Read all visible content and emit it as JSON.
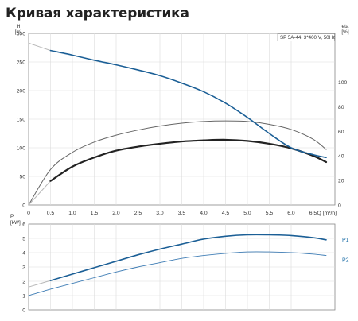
{
  "page": {
    "title": "Кривая характеристика"
  },
  "chart_data": [
    {
      "type": "line",
      "name": "head-efficiency",
      "legend": "SP 5A-44, 3*400 V, 50Hz",
      "ylabel_left": [
        "H",
        "[m]"
      ],
      "ylabel_right": [
        "eta",
        "[%]"
      ],
      "xlabel": "Q [m³/h]",
      "xlim": [
        0,
        7
      ],
      "ylim_left": [
        0,
        300
      ],
      "ylim_right": [
        0,
        140
      ],
      "xticks": [
        0,
        0.5,
        1.0,
        1.5,
        2.0,
        2.5,
        3.0,
        3.5,
        4.0,
        4.5,
        5.0,
        5.5,
        6.0,
        6.5
      ],
      "xtick_labels": [
        "0",
        "0.5",
        "1.0",
        "1.5",
        "2.0",
        "2.5",
        "3.0",
        "3.5",
        "4.0",
        "4.5",
        "5.0",
        "5.5",
        "6.0",
        "6.5"
      ],
      "yticks_left": [
        0,
        50,
        100,
        150,
        200,
        250,
        300
      ],
      "yticks_right": [
        0,
        20,
        40,
        60,
        80,
        100
      ],
      "grid": true,
      "series": [
        {
          "axis": "left",
          "color": "#1b5f96",
          "width": 1.6,
          "x": [
            0,
            0.5,
            1.0,
            1.5,
            2.0,
            2.5,
            3.0,
            3.5,
            4.0,
            4.5,
            5.0,
            5.5,
            6.0,
            6.5,
            6.8
          ],
          "y": [
            283,
            270,
            262,
            253,
            245,
            236,
            226,
            213,
            198,
            178,
            153,
            125,
            100,
            88,
            83
          ],
          "highlight_from": 0.5
        },
        {
          "axis": "left",
          "color": "#222222",
          "width": 2.2,
          "x": [
            0,
            0.5,
            1.0,
            1.5,
            2.0,
            2.5,
            3.0,
            3.5,
            4.0,
            4.5,
            5.0,
            5.5,
            6.0,
            6.5,
            6.8
          ],
          "y": [
            0,
            42,
            67,
            83,
            95,
            102,
            107,
            111,
            113,
            114,
            112,
            107,
            99,
            86,
            75
          ],
          "highlight_from": 0.5
        },
        {
          "axis": "left",
          "color": "#666666",
          "width": 1.0,
          "x": [
            0,
            0.5,
            1.0,
            1.5,
            2.0,
            2.5,
            3.0,
            3.5,
            4.0,
            4.5,
            5.0,
            5.5,
            6.0,
            6.5,
            6.8
          ],
          "y": [
            0,
            62,
            92,
            110,
            122,
            131,
            138,
            143,
            146,
            147,
            146,
            141,
            132,
            115,
            97
          ]
        }
      ]
    },
    {
      "type": "line",
      "name": "power",
      "ylabel": [
        "P",
        "[kW]"
      ],
      "xlim": [
        0,
        7
      ],
      "ylim": [
        0,
        6
      ],
      "yticks": [
        0,
        1,
        2,
        3,
        4,
        5,
        6
      ],
      "grid": true,
      "series": [
        {
          "name": "P1",
          "color": "#1b5f96",
          "width": 1.6,
          "x": [
            0,
            0.5,
            1.0,
            1.5,
            2.0,
            2.5,
            3.0,
            3.5,
            4.0,
            4.5,
            5.0,
            5.5,
            6.0,
            6.5,
            6.8
          ],
          "y": [
            1.6,
            2.05,
            2.5,
            2.95,
            3.4,
            3.85,
            4.25,
            4.6,
            4.95,
            5.15,
            5.25,
            5.25,
            5.2,
            5.05,
            4.9
          ],
          "highlight_from": 0.5
        },
        {
          "name": "P2",
          "color": "#3f7db5",
          "width": 0.9,
          "x": [
            0,
            0.5,
            1.0,
            1.5,
            2.0,
            2.5,
            3.0,
            3.5,
            4.0,
            4.5,
            5.0,
            5.5,
            6.0,
            6.5,
            6.8
          ],
          "y": [
            1.0,
            1.45,
            1.85,
            2.25,
            2.65,
            3.0,
            3.3,
            3.6,
            3.8,
            3.95,
            4.05,
            4.05,
            4.0,
            3.9,
            3.8
          ]
        }
      ]
    }
  ]
}
